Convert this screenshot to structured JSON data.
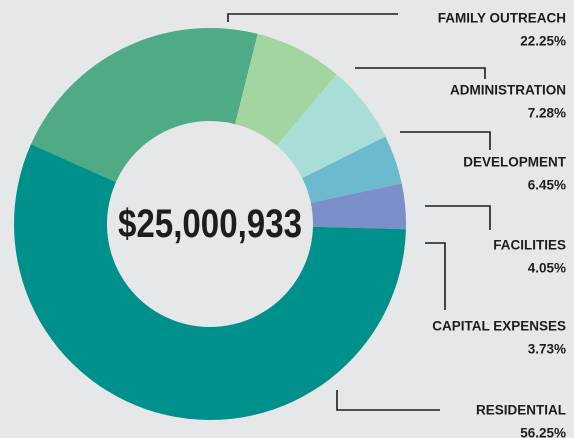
{
  "chart_data": {
    "type": "donut",
    "center_label": "$25,000,933",
    "categories": [
      "FAMILY OUTREACH",
      "ADMINISTRATION",
      "DEVELOPMENT",
      "FACILITIES",
      "CAPITAL EXPENSES",
      "RESIDENTIAL"
    ],
    "values": [
      22.25,
      7.28,
      6.45,
      4.05,
      3.73,
      56.25
    ],
    "value_labels": [
      "22.25%",
      "7.28%",
      "6.45%",
      "4.05%",
      "3.73%",
      "56.25%"
    ],
    "colors": [
      "#4faa86",
      "#a2d5a0",
      "#a9ddd7",
      "#6cbacd",
      "#7b90c8",
      "#00908c"
    ]
  }
}
